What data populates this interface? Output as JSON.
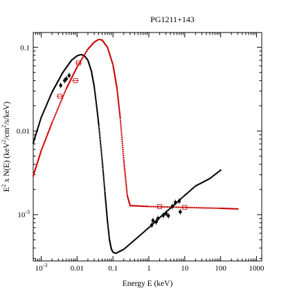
{
  "chart_data": {
    "type": "scatter",
    "title": "PG1211+143",
    "xlabel": "Energy E (keV)",
    "ylabel_parts": [
      "E",
      "2",
      " x N(E) (keV",
      "2",
      "/cm",
      "2",
      "/s/keV)"
    ],
    "xscale": "log",
    "yscale": "log",
    "xlim": [
      0.0006,
      1400
    ],
    "ylim": [
      0.00028,
      0.15
    ],
    "x_ticks": [
      {
        "value": 0.001,
        "base": "10",
        "exp": "-3"
      },
      {
        "value": 0.01,
        "label": "0.01"
      },
      {
        "value": 0.1,
        "label": "0.1"
      },
      {
        "value": 1,
        "label": "1"
      },
      {
        "value": 10,
        "label": "10"
      },
      {
        "value": 100,
        "label": "100"
      },
      {
        "value": 1000,
        "label": "1000"
      }
    ],
    "y_ticks": [
      {
        "value": 0.001,
        "base": "10",
        "exp": "-3"
      },
      {
        "value": 0.01,
        "label": "0.01"
      },
      {
        "value": 0.1,
        "label": "0.1"
      }
    ],
    "colors": {
      "black_model": "#000000",
      "red_model": "#cc0000"
    },
    "series": [
      {
        "id": "black_model",
        "color": "#000000",
        "style": "dotted-dense",
        "points": [
          [
            0.0006,
            0.0072
          ],
          [
            0.001,
            0.0145
          ],
          [
            0.002,
            0.029
          ],
          [
            0.004,
            0.05
          ],
          [
            0.007,
            0.07
          ],
          [
            0.01,
            0.079
          ],
          [
            0.013,
            0.082
          ],
          [
            0.016,
            0.079
          ],
          [
            0.02,
            0.07
          ],
          [
            0.025,
            0.052
          ],
          [
            0.03,
            0.034
          ],
          [
            0.035,
            0.02
          ],
          [
            0.04,
            0.012
          ],
          [
            0.05,
            0.0045
          ],
          [
            0.06,
            0.0018
          ],
          [
            0.07,
            0.00085
          ],
          [
            0.08,
            0.0005
          ],
          [
            0.09,
            0.00039
          ],
          [
            0.1,
            0.000355
          ],
          [
            0.12,
            0.000345
          ],
          [
            0.2,
            0.000385
          ],
          [
            0.5,
            0.00054
          ],
          [
            1,
            0.0007
          ],
          [
            2,
            0.00092
          ],
          [
            5,
            0.0013
          ],
          [
            10,
            0.0017
          ],
          [
            20,
            0.0022
          ],
          [
            50,
            0.0027
          ],
          [
            100,
            0.0034
          ]
        ]
      },
      {
        "id": "red_model",
        "color": "#cc0000",
        "style": "dotted-dense",
        "points": [
          [
            0.0006,
            0.0029
          ],
          [
            0.001,
            0.0058
          ],
          [
            0.002,
            0.0125
          ],
          [
            0.005,
            0.032
          ],
          [
            0.01,
            0.058
          ],
          [
            0.02,
            0.095
          ],
          [
            0.03,
            0.115
          ],
          [
            0.04,
            0.124
          ],
          [
            0.05,
            0.122
          ],
          [
            0.07,
            0.1
          ],
          [
            0.1,
            0.062
          ],
          [
            0.13,
            0.032
          ],
          [
            0.16,
            0.014
          ],
          [
            0.2,
            0.0045
          ],
          [
            0.25,
            0.0017
          ],
          [
            0.3,
            0.00128
          ],
          [
            0.5,
            0.00127
          ],
          [
            1,
            0.00125
          ],
          [
            10,
            0.00122
          ],
          [
            100,
            0.00119
          ],
          [
            300,
            0.00117
          ]
        ]
      }
    ],
    "data_points_black": [
      {
        "x": 0.0035,
        "y": 0.035
      },
      {
        "x": 0.0045,
        "y": 0.04
      },
      {
        "x": 0.005,
        "y": 0.042
      },
      {
        "x": 0.006,
        "y": 0.046
      },
      {
        "x": 1.2,
        "y": 0.00075
      },
      {
        "x": 1.3,
        "y": 0.00085
      },
      {
        "x": 1.6,
        "y": 0.00082
      },
      {
        "x": 1.8,
        "y": 0.0009
      },
      {
        "x": 2.5,
        "y": 0.00098
      },
      {
        "x": 3,
        "y": 0.00103
      },
      {
        "x": 3.5,
        "y": 0.00097
      },
      {
        "x": 4.5,
        "y": 0.00125
      },
      {
        "x": 5.5,
        "y": 0.0014
      },
      {
        "x": 7,
        "y": 0.00145
      },
      {
        "x": 7.5,
        "y": 0.00108
      }
    ],
    "data_points_red": [
      {
        "x": 0.0033,
        "y": 0.026
      },
      {
        "x": 0.009,
        "y": 0.04
      },
      {
        "x": 0.011,
        "y": 0.065
      },
      {
        "x": 2,
        "y": 0.00125
      },
      {
        "x": 10,
        "y": 0.00122
      }
    ]
  }
}
